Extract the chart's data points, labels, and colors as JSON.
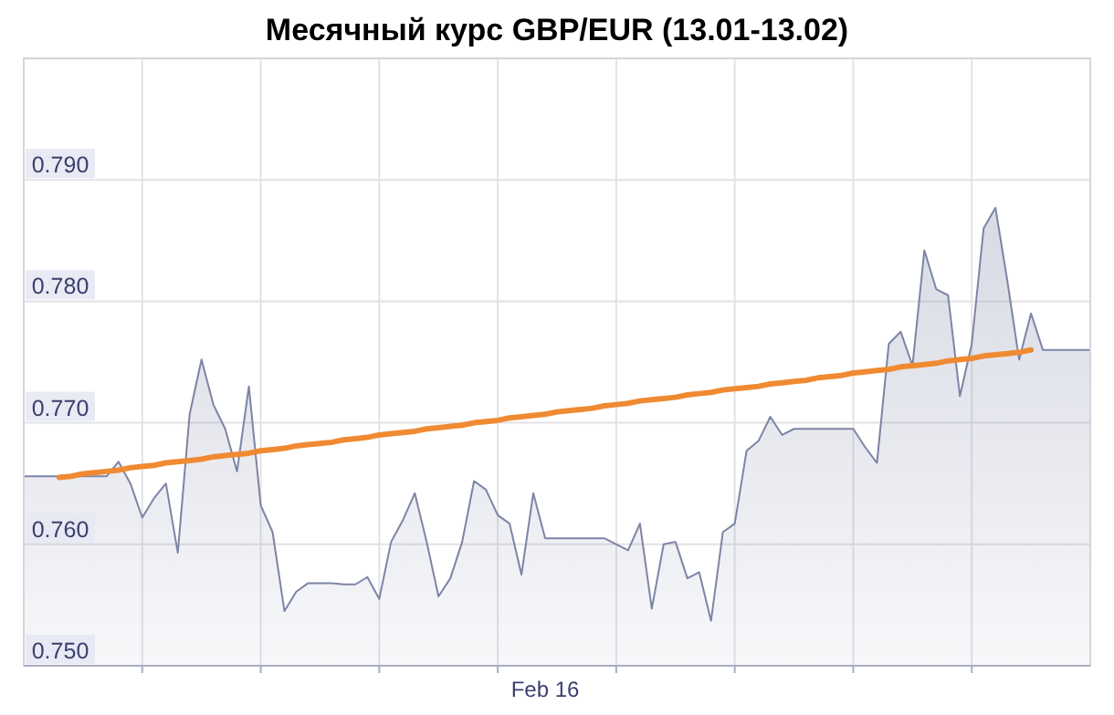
{
  "chart_data": {
    "type": "area",
    "title": "Месячный курс GBP/EUR (13.01-13.02)",
    "categories": [
      null,
      null,
      null,
      null,
      null,
      null,
      null,
      null,
      null,
      null,
      null,
      null,
      null,
      null,
      null,
      null,
      null,
      null,
      null,
      null,
      null,
      null,
      null,
      null,
      null,
      null,
      null,
      null,
      null,
      null,
      null,
      null,
      null,
      null,
      null,
      null,
      null,
      null,
      null,
      null,
      null,
      null,
      null,
      null,
      "Feb 16",
      null,
      null,
      null,
      null,
      null,
      null,
      null,
      null,
      null,
      null,
      null,
      null,
      null,
      null,
      null,
      null,
      null,
      null,
      null,
      null,
      null,
      null,
      null,
      null,
      null,
      null,
      null,
      null,
      null,
      null,
      null,
      null,
      null,
      null,
      null,
      null,
      null,
      null,
      null,
      null,
      null,
      null,
      null,
      null,
      null,
      null
    ],
    "ylim": [
      0.75,
      0.8
    ],
    "yticks": [
      {
        "value": 0.75,
        "label": "0.750"
      },
      {
        "value": 0.76,
        "label": "0.760"
      },
      {
        "value": 0.77,
        "label": "0.770"
      },
      {
        "value": 0.78,
        "label": "0.780"
      },
      {
        "value": 0.79,
        "label": "0.790"
      }
    ],
    "grid": true,
    "series": [
      {
        "color": "#7d84a6",
        "values": [
          0.7656,
          0.7656,
          0.7656,
          0.7656,
          0.7656,
          0.7656,
          0.7656,
          0.7656,
          0.7668,
          0.765,
          0.7622,
          0.7638,
          0.765,
          0.7593,
          0.7707,
          0.7752,
          0.7715,
          0.7695,
          0.766,
          0.773,
          0.7632,
          0.761,
          0.7545,
          0.7561,
          0.7568,
          0.7568,
          0.7568,
          0.7567,
          0.7567,
          0.7573,
          0.7555,
          0.7602,
          0.762,
          0.7642,
          0.7602,
          0.7557,
          0.7572,
          0.7602,
          0.7652,
          0.7645,
          0.7624,
          0.7617,
          0.7575,
          0.7642,
          0.7605,
          0.7605,
          0.7605,
          0.7605,
          0.7605,
          0.7605,
          0.76,
          0.7595,
          0.7617,
          0.7547,
          0.76,
          0.7602,
          0.7572,
          0.7577,
          0.7537,
          0.761,
          0.7617,
          0.7677,
          0.7685,
          0.7705,
          0.769,
          0.7695,
          0.7695,
          0.7695,
          0.7695,
          0.7695,
          0.7695,
          0.768,
          0.7667,
          0.7765,
          0.7775,
          0.7747,
          0.7842,
          0.781,
          0.7805,
          0.7722,
          0.7765,
          0.786,
          0.7877,
          0.7817,
          0.7752,
          0.779,
          0.776,
          0.776,
          0.776,
          0.776,
          0.776
        ]
      },
      {
        "type": "line",
        "color": "#f08a32",
        "values": [
          null,
          null,
          null,
          0.7655,
          0.7656,
          0.7658,
          0.7659,
          0.766,
          0.7661,
          0.7663,
          0.7664,
          0.7665,
          0.7667,
          0.7668,
          0.7669,
          0.767,
          0.7672,
          0.7673,
          0.7674,
          0.7675,
          0.7677,
          0.7678,
          0.7679,
          0.7681,
          0.7682,
          0.7683,
          0.7684,
          0.7686,
          0.7687,
          0.7688,
          0.769,
          0.7691,
          0.7692,
          0.7693,
          0.7695,
          0.7696,
          0.7697,
          0.7698,
          0.77,
          0.7701,
          0.7702,
          0.7704,
          0.7705,
          0.7706,
          0.7707,
          0.7709,
          0.771,
          0.7711,
          0.7712,
          0.7714,
          0.7715,
          0.7716,
          0.7718,
          0.7719,
          0.772,
          0.7721,
          0.7723,
          0.7724,
          0.7725,
          0.7727,
          0.7728,
          0.7729,
          0.773,
          0.7732,
          0.7733,
          0.7734,
          0.7735,
          0.7737,
          0.7738,
          0.7739,
          0.7741,
          0.7742,
          0.7743,
          0.7744,
          0.7746,
          0.7747,
          0.7748,
          0.7749,
          0.7751,
          0.7752,
          0.7753,
          0.7755,
          0.7756,
          0.7757,
          0.7758,
          0.776,
          null,
          null,
          null,
          null,
          null
        ]
      }
    ]
  }
}
